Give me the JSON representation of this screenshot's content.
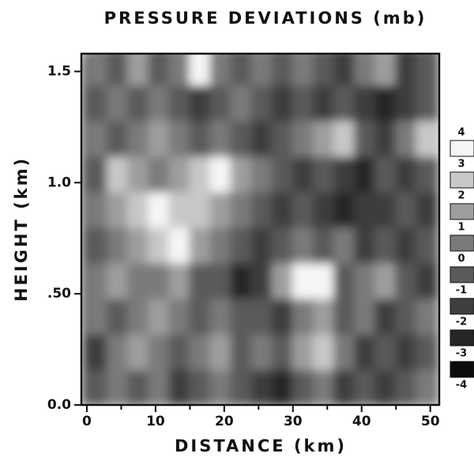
{
  "chart_data": {
    "type": "contour",
    "title": "PRESSURE DEVIATIONS (mb)",
    "x_label": "DISTANCE (km)",
    "y_label": "HEIGHT (km)",
    "xlim": [
      -0.8,
      51.3
    ],
    "ylim": [
      0,
      1.58
    ],
    "xticks": [
      0,
      10,
      20,
      30,
      40,
      50
    ],
    "xminorticks": [
      5,
      15,
      25,
      35,
      45
    ],
    "yticks": [
      {
        "value": 0,
        "label": "0.0"
      },
      {
        "value": 0.5,
        "label": ".50"
      },
      {
        "value": 1,
        "label": "1.0"
      },
      1.5
    ],
    "levels": [
      -4,
      -3,
      -2,
      -1,
      0,
      1,
      2,
      3,
      4
    ],
    "colors": [
      "#0c0c0c",
      "#262626",
      "#3e3e3e",
      "#5a5a5a",
      "#7a7a7a",
      "#9e9e9e",
      "#c8c8c8",
      "#f6f6f6"
    ],
    "x": [
      1.5,
      4.5,
      7.5,
      10.5,
      13.5,
      16.5,
      19.5,
      22.5,
      25.5,
      28.5,
      31.5,
      34.5,
      37.5,
      40.5,
      43.5,
      46.5,
      49.5
    ],
    "y": [
      0.08,
      0.24,
      0.4,
      0.56,
      0.72,
      0.88,
      1.04,
      1.2,
      1.36,
      1.52
    ],
    "z": [
      [
        -1,
        0,
        -1,
        0,
        -2,
        -1,
        0,
        -1,
        -2,
        -3,
        -1,
        0,
        -2,
        -1,
        -2,
        -1,
        0
      ],
      [
        -2,
        0,
        1,
        0,
        -1,
        0,
        1,
        -1,
        0,
        -1,
        1,
        2,
        0,
        -2,
        -1,
        -2,
        -1
      ],
      [
        0,
        -1,
        0,
        1,
        0,
        -1,
        0,
        -1,
        -1,
        -2,
        0,
        1,
        -1,
        0,
        -2,
        -1,
        0
      ],
      [
        0,
        1,
        0,
        0,
        1,
        -1,
        -1,
        -3,
        -2,
        1,
        3,
        3,
        -1,
        0,
        1,
        -1,
        -2
      ],
      [
        -1,
        0,
        1,
        2,
        3,
        1,
        0,
        -1,
        -2,
        -1,
        0,
        -1,
        0,
        -2,
        -1,
        -2,
        -1
      ],
      [
        0,
        1,
        2,
        3,
        2,
        2,
        1,
        0,
        -1,
        -2,
        -1,
        -2,
        -3,
        -2,
        -2,
        -1,
        -2
      ],
      [
        -1,
        2,
        1,
        0,
        1,
        2,
        3,
        1,
        0,
        -1,
        -2,
        -1,
        -2,
        -3,
        -1,
        -2,
        -1
      ],
      [
        0,
        -1,
        0,
        1,
        0,
        -1,
        0,
        -1,
        -2,
        -1,
        0,
        1,
        2,
        -1,
        -2,
        0,
        2
      ],
      [
        -1,
        0,
        -1,
        0,
        -1,
        -2,
        -1,
        0,
        -1,
        -2,
        -1,
        -2,
        -1,
        -2,
        -3,
        -2,
        -1
      ],
      [
        0,
        -1,
        1,
        -1,
        0,
        3,
        0,
        -1,
        0,
        -1,
        0,
        -1,
        -2,
        0,
        1,
        -2,
        -1
      ]
    ]
  }
}
